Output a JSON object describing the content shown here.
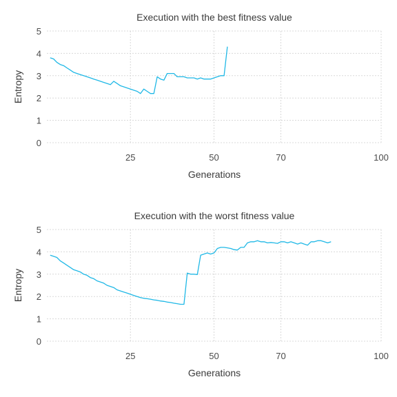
{
  "chart_data": [
    {
      "type": "line",
      "title": "Execution with the best fitness value",
      "xlabel": "Generations",
      "ylabel": "Entropy",
      "xlim": [
        0,
        100
      ],
      "ylim": [
        0,
        5
      ],
      "xticks": [
        25,
        50,
        70,
        100
      ],
      "yticks": [
        0,
        1,
        2,
        3,
        4,
        5
      ],
      "grid": true,
      "series_color": "#1fb8e6",
      "series": [
        {
          "x": [
            1,
            2,
            3,
            4,
            5,
            6,
            7,
            8,
            9,
            10,
            11,
            12,
            13,
            14,
            15,
            16,
            17,
            18,
            19,
            20,
            21,
            22,
            23,
            24,
            25,
            26,
            27,
            28,
            29,
            30,
            31,
            32,
            33,
            34,
            35,
            36,
            37,
            38,
            39,
            40,
            41,
            42,
            43,
            44,
            45,
            46,
            47,
            48,
            49,
            50,
            51,
            52,
            53,
            54
          ],
          "y": [
            3.8,
            3.75,
            3.6,
            3.5,
            3.45,
            3.35,
            3.25,
            3.15,
            3.1,
            3.05,
            3.0,
            2.95,
            2.9,
            2.85,
            2.8,
            2.75,
            2.7,
            2.65,
            2.6,
            2.75,
            2.65,
            2.55,
            2.5,
            2.45,
            2.4,
            2.35,
            2.3,
            2.2,
            2.4,
            2.3,
            2.2,
            2.2,
            2.95,
            2.85,
            2.8,
            3.1,
            3.1,
            3.1,
            2.95,
            2.95,
            2.95,
            2.9,
            2.9,
            2.9,
            2.85,
            2.9,
            2.85,
            2.85,
            2.85,
            2.9,
            2.95,
            3.0,
            3.0,
            4.3
          ]
        }
      ]
    },
    {
      "type": "line",
      "title": "Execution with the worst fitness value",
      "xlabel": "Generations",
      "ylabel": "Entropy",
      "xlim": [
        0,
        100
      ],
      "ylim": [
        0,
        5
      ],
      "xticks": [
        25,
        50,
        70,
        100
      ],
      "yticks": [
        0,
        1,
        2,
        3,
        4,
        5
      ],
      "grid": true,
      "series_color": "#1fb8e6",
      "series": [
        {
          "x": [
            1,
            2,
            3,
            4,
            5,
            6,
            7,
            8,
            9,
            10,
            11,
            12,
            13,
            14,
            15,
            16,
            17,
            18,
            19,
            20,
            21,
            22,
            23,
            24,
            25,
            26,
            27,
            28,
            29,
            30,
            31,
            32,
            33,
            34,
            35,
            36,
            37,
            38,
            39,
            40,
            41,
            42,
            43,
            44,
            45,
            46,
            47,
            48,
            49,
            50,
            51,
            52,
            53,
            54,
            55,
            56,
            57,
            58,
            59,
            60,
            61,
            62,
            63,
            64,
            65,
            66,
            67,
            68,
            69,
            70,
            71,
            72,
            73,
            74,
            75,
            76,
            77,
            78,
            79,
            80,
            81,
            82,
            83,
            84,
            85
          ],
          "y": [
            3.85,
            3.8,
            3.75,
            3.6,
            3.5,
            3.4,
            3.3,
            3.2,
            3.15,
            3.1,
            3.0,
            2.95,
            2.85,
            2.8,
            2.7,
            2.65,
            2.6,
            2.5,
            2.45,
            2.4,
            2.3,
            2.25,
            2.2,
            2.15,
            2.1,
            2.05,
            2.0,
            1.95,
            1.92,
            1.9,
            1.88,
            1.85,
            1.83,
            1.8,
            1.78,
            1.75,
            1.73,
            1.7,
            1.68,
            1.65,
            1.65,
            3.05,
            3.0,
            3.0,
            2.98,
            3.85,
            3.9,
            3.95,
            3.9,
            3.95,
            4.15,
            4.2,
            4.2,
            4.18,
            4.15,
            4.1,
            4.08,
            4.2,
            4.2,
            4.4,
            4.45,
            4.45,
            4.5,
            4.45,
            4.45,
            4.4,
            4.42,
            4.4,
            4.38,
            4.45,
            4.45,
            4.4,
            4.45,
            4.4,
            4.35,
            4.4,
            4.35,
            4.3,
            4.45,
            4.45,
            4.5,
            4.5,
            4.45,
            4.4,
            4.45
          ]
        }
      ]
    }
  ]
}
